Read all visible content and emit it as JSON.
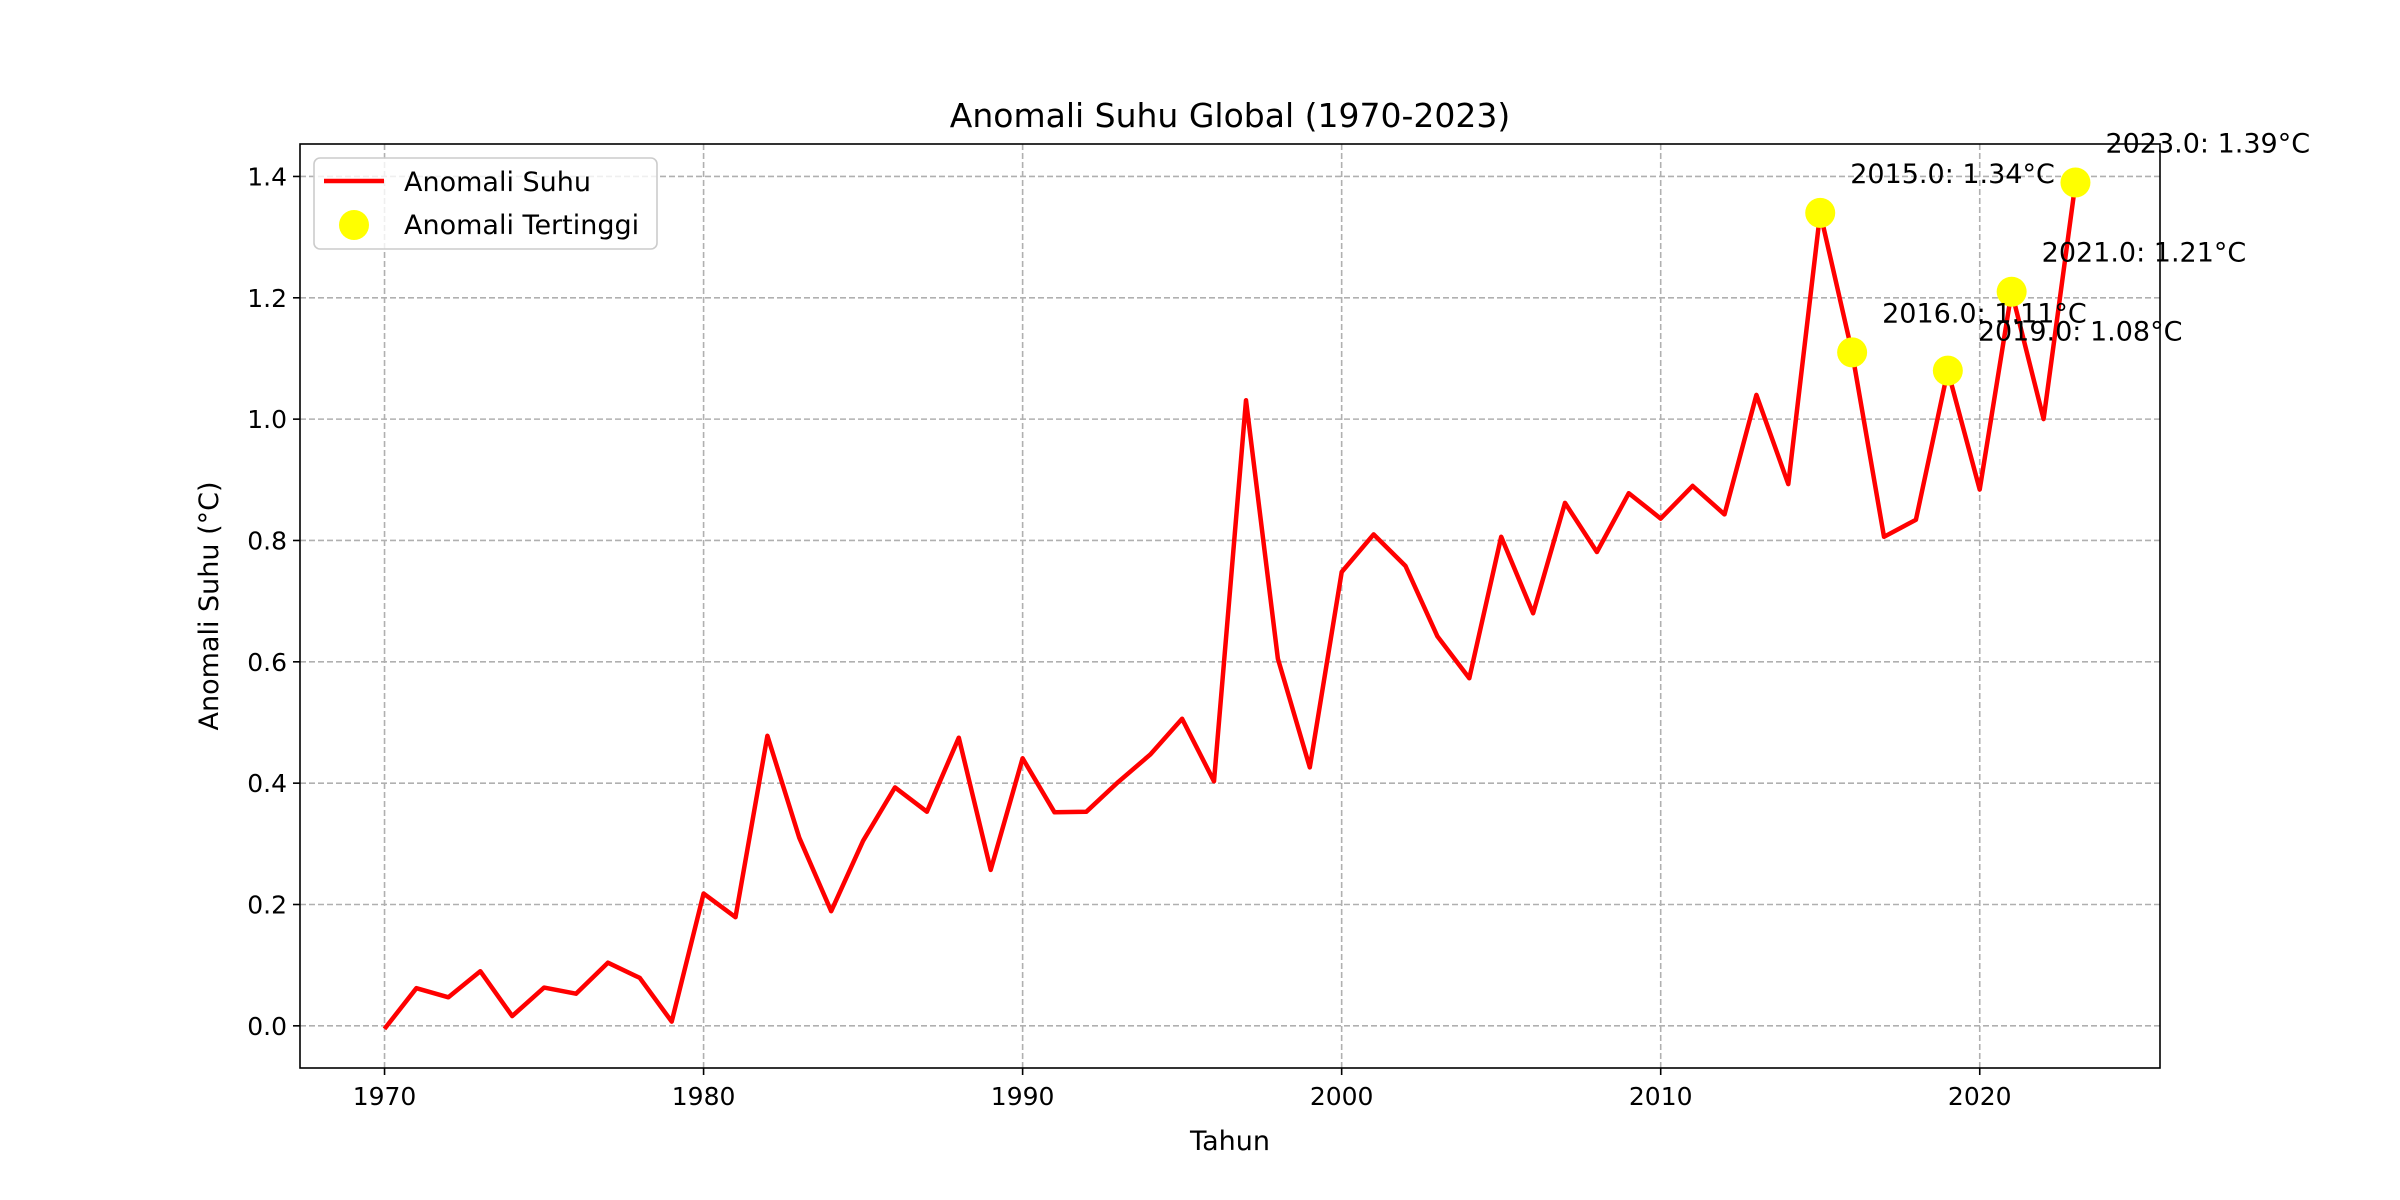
{
  "chart_data": {
    "type": "line",
    "title": "Anomali Suhu Global (1970-2023)",
    "xlabel": "Tahun",
    "ylabel": "Anomali Suhu (°C)",
    "xlim": [
      1967.35,
      2025.65
    ],
    "ylim": [
      -0.0695,
      1.4535
    ],
    "xticks": [
      1970,
      1980,
      1990,
      2000,
      2010,
      2020
    ],
    "yticks": [
      0.0,
      0.2,
      0.4,
      0.6,
      0.8,
      1.0,
      1.2,
      1.4
    ],
    "xtick_labels": [
      "1970",
      "1980",
      "1990",
      "2000",
      "2010",
      "2020"
    ],
    "ytick_labels": [
      "0.0",
      "0.2",
      "0.4",
      "0.6",
      "0.8",
      "1.0",
      "1.2",
      "1.4"
    ],
    "grid": true,
    "legend_position": "top-left",
    "series": [
      {
        "name": "Anomali Suhu",
        "color": "#ff0000",
        "x": [
          1970,
          1971,
          1972,
          1973,
          1974,
          1975,
          1976,
          1977,
          1978,
          1979,
          1980,
          1981,
          1982,
          1983,
          1984,
          1985,
          1986,
          1987,
          1988,
          1989,
          1990,
          1991,
          1992,
          1993,
          1994,
          1995,
          1996,
          1997,
          1998,
          1999,
          2000,
          2001,
          2002,
          2003,
          2004,
          2005,
          2006,
          2007,
          2008,
          2009,
          2010,
          2011,
          2012,
          2013,
          2014,
          2015,
          2016,
          2017,
          2018,
          2019,
          2020,
          2021,
          2022,
          2023
        ],
        "values": [
          -0.005,
          0.062,
          0.047,
          0.09,
          0.016,
          0.063,
          0.053,
          0.104,
          0.079,
          0.007,
          0.218,
          0.179,
          0.478,
          0.31,
          0.189,
          0.305,
          0.393,
          0.353,
          0.475,
          0.257,
          0.441,
          0.352,
          0.353,
          0.402,
          0.447,
          0.506,
          0.403,
          1.031,
          0.605,
          0.426,
          0.748,
          0.81,
          0.758,
          0.642,
          0.573,
          0.806,
          0.68,
          0.862,
          0.781,
          0.878,
          0.836,
          0.89,
          0.843,
          1.04,
          0.893,
          1.34,
          1.11,
          0.806,
          0.834,
          1.08,
          0.884,
          1.21,
          1.0,
          1.39
        ]
      }
    ],
    "highlights": {
      "name": "Anomali Tertinggi",
      "color": "#ffff00",
      "x": [
        2015,
        2016,
        2019,
        2021,
        2023
      ],
      "values": [
        1.34,
        1.11,
        1.08,
        1.21,
        1.39
      ],
      "labels": [
        "2015.0: 1.34°C",
        "2016.0: 1.11°C",
        "2019.0: 1.08°C",
        "2021.0: 1.21°C",
        "2023.0: 1.39°C"
      ]
    }
  }
}
